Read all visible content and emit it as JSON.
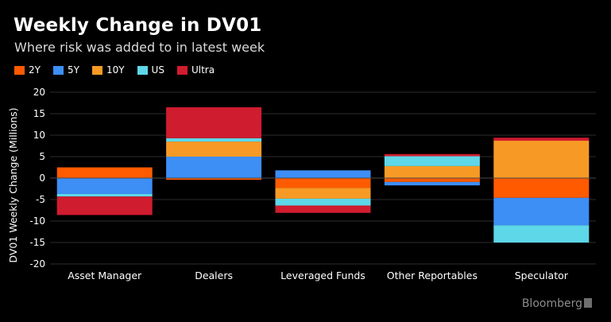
{
  "header": {
    "title": "Weekly Change in DV01",
    "subtitle": "Where risk was added to in latest week"
  },
  "legend": [
    {
      "label": "2Y",
      "color": "#ff5a00"
    },
    {
      "label": "5Y",
      "color": "#3d8ef5"
    },
    {
      "label": "10Y",
      "color": "#f79a25"
    },
    {
      "label": "US",
      "color": "#5ed7e8"
    },
    {
      "label": "Ultra",
      "color": "#d01c2f"
    }
  ],
  "brand": {
    "name": "Bloomberg",
    "icon": "bloomberg-logo-icon"
  },
  "chart_data": {
    "type": "bar",
    "stacked": true,
    "ylabel": "DV01 Weekly Change (Millions)",
    "ylim": [
      -20,
      20
    ],
    "yticks": [
      20,
      15,
      10,
      5,
      0,
      -5,
      -10,
      -15,
      -20
    ],
    "grid": true,
    "legend_position": "top-left",
    "categories": [
      "Asset Manager",
      "Dealers",
      "Leveraged Funds",
      "Other Reportables",
      "Speculator"
    ],
    "series": [
      {
        "name": "2Y",
        "color": "#ff5a00",
        "values": [
          2.5,
          -0.4,
          -2.3,
          -0.9,
          -4.6
        ]
      },
      {
        "name": "5Y",
        "color": "#3d8ef5",
        "values": [
          -3.7,
          5.0,
          1.8,
          -0.8,
          -6.4
        ]
      },
      {
        "name": "10Y",
        "color": "#f79a25",
        "values": [
          0,
          3.5,
          -2.5,
          2.8,
          8.7
        ]
      },
      {
        "name": "US",
        "color": "#5ed7e8",
        "values": [
          -0.6,
          0.8,
          -1.6,
          2.3,
          -4.0
        ]
      },
      {
        "name": "Ultra",
        "color": "#d01c2f",
        "values": [
          -4.3,
          7.2,
          -1.7,
          0.5,
          0.7
        ]
      }
    ]
  }
}
